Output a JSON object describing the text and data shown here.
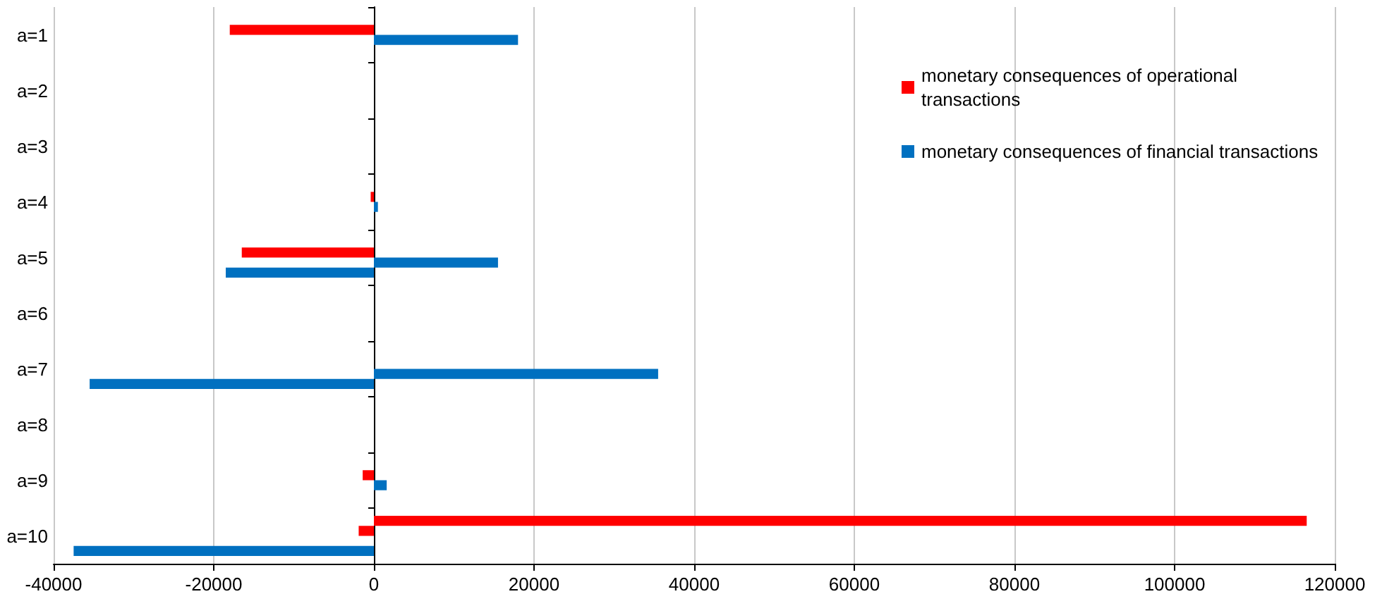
{
  "chart_data": {
    "type": "bar",
    "orientation": "horizontal",
    "categories": [
      "a=1",
      "a=2",
      "a=3",
      "a=4",
      "a=5",
      "a=6",
      "a=7",
      "a=8",
      "a=9",
      "a=10"
    ],
    "series": [
      {
        "color": "#ff0000",
        "values": [
          null,
          null,
          null,
          null,
          null,
          null,
          null,
          null,
          null,
          116500
        ]
      },
      {
        "name": "monetary consequences of operational transactions",
        "color": "#ff0000",
        "values": [
          -18000,
          null,
          null,
          -400,
          -16500,
          null,
          null,
          null,
          -1400,
          -1900
        ]
      },
      {
        "name": "monetary consequences of financial transactions",
        "color": "#0070c0",
        "values": [
          18000,
          null,
          null,
          500,
          15500,
          null,
          35500,
          null,
          1600,
          null
        ]
      },
      {
        "color": "#0070c0",
        "values": [
          null,
          null,
          null,
          null,
          -18500,
          null,
          -35500,
          null,
          null,
          -37500
        ]
      }
    ],
    "xlim": [
      -40000,
      120000
    ],
    "xticks": [
      -40000,
      -20000,
      0,
      20000,
      40000,
      60000,
      80000,
      100000,
      120000
    ],
    "grid": "x",
    "legend": "top right"
  }
}
